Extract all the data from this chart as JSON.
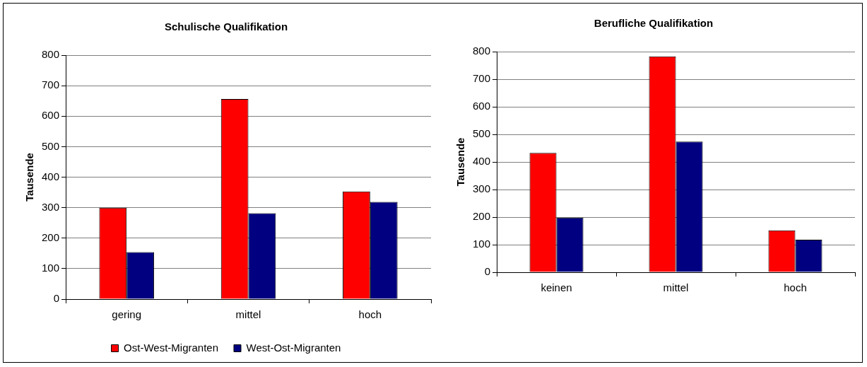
{
  "chart_data": [
    {
      "type": "bar",
      "title": "Schulische Qualifikation",
      "ylabel": "Tausende",
      "categories": [
        "gering",
        "mittel",
        "hoch"
      ],
      "series": [
        {
          "name": "Ost-West-Migranten",
          "color": "#ff0000",
          "values": [
            300,
            656,
            353
          ]
        },
        {
          "name": "West-Ost-Migranten",
          "color": "#000080",
          "values": [
            154,
            282,
            319
          ]
        }
      ],
      "ylim": [
        0,
        800
      ],
      "yticks": [
        0,
        100,
        200,
        300,
        400,
        500,
        600,
        700,
        800
      ],
      "grid": "y",
      "legend": "bottom"
    },
    {
      "type": "bar",
      "title": "Berufliche Qualifikation",
      "ylabel": "Tausende",
      "categories": [
        "keinen",
        "mittel",
        "hoch"
      ],
      "series": [
        {
          "color": "#ff0000",
          "values": [
            433,
            783,
            152
          ]
        },
        {
          "color": "#000080",
          "values": [
            198,
            474,
            118
          ]
        }
      ],
      "ylim": [
        0,
        800
      ],
      "yticks": [
        0,
        100,
        200,
        300,
        400,
        500,
        600,
        700,
        800
      ],
      "grid": "y"
    }
  ]
}
